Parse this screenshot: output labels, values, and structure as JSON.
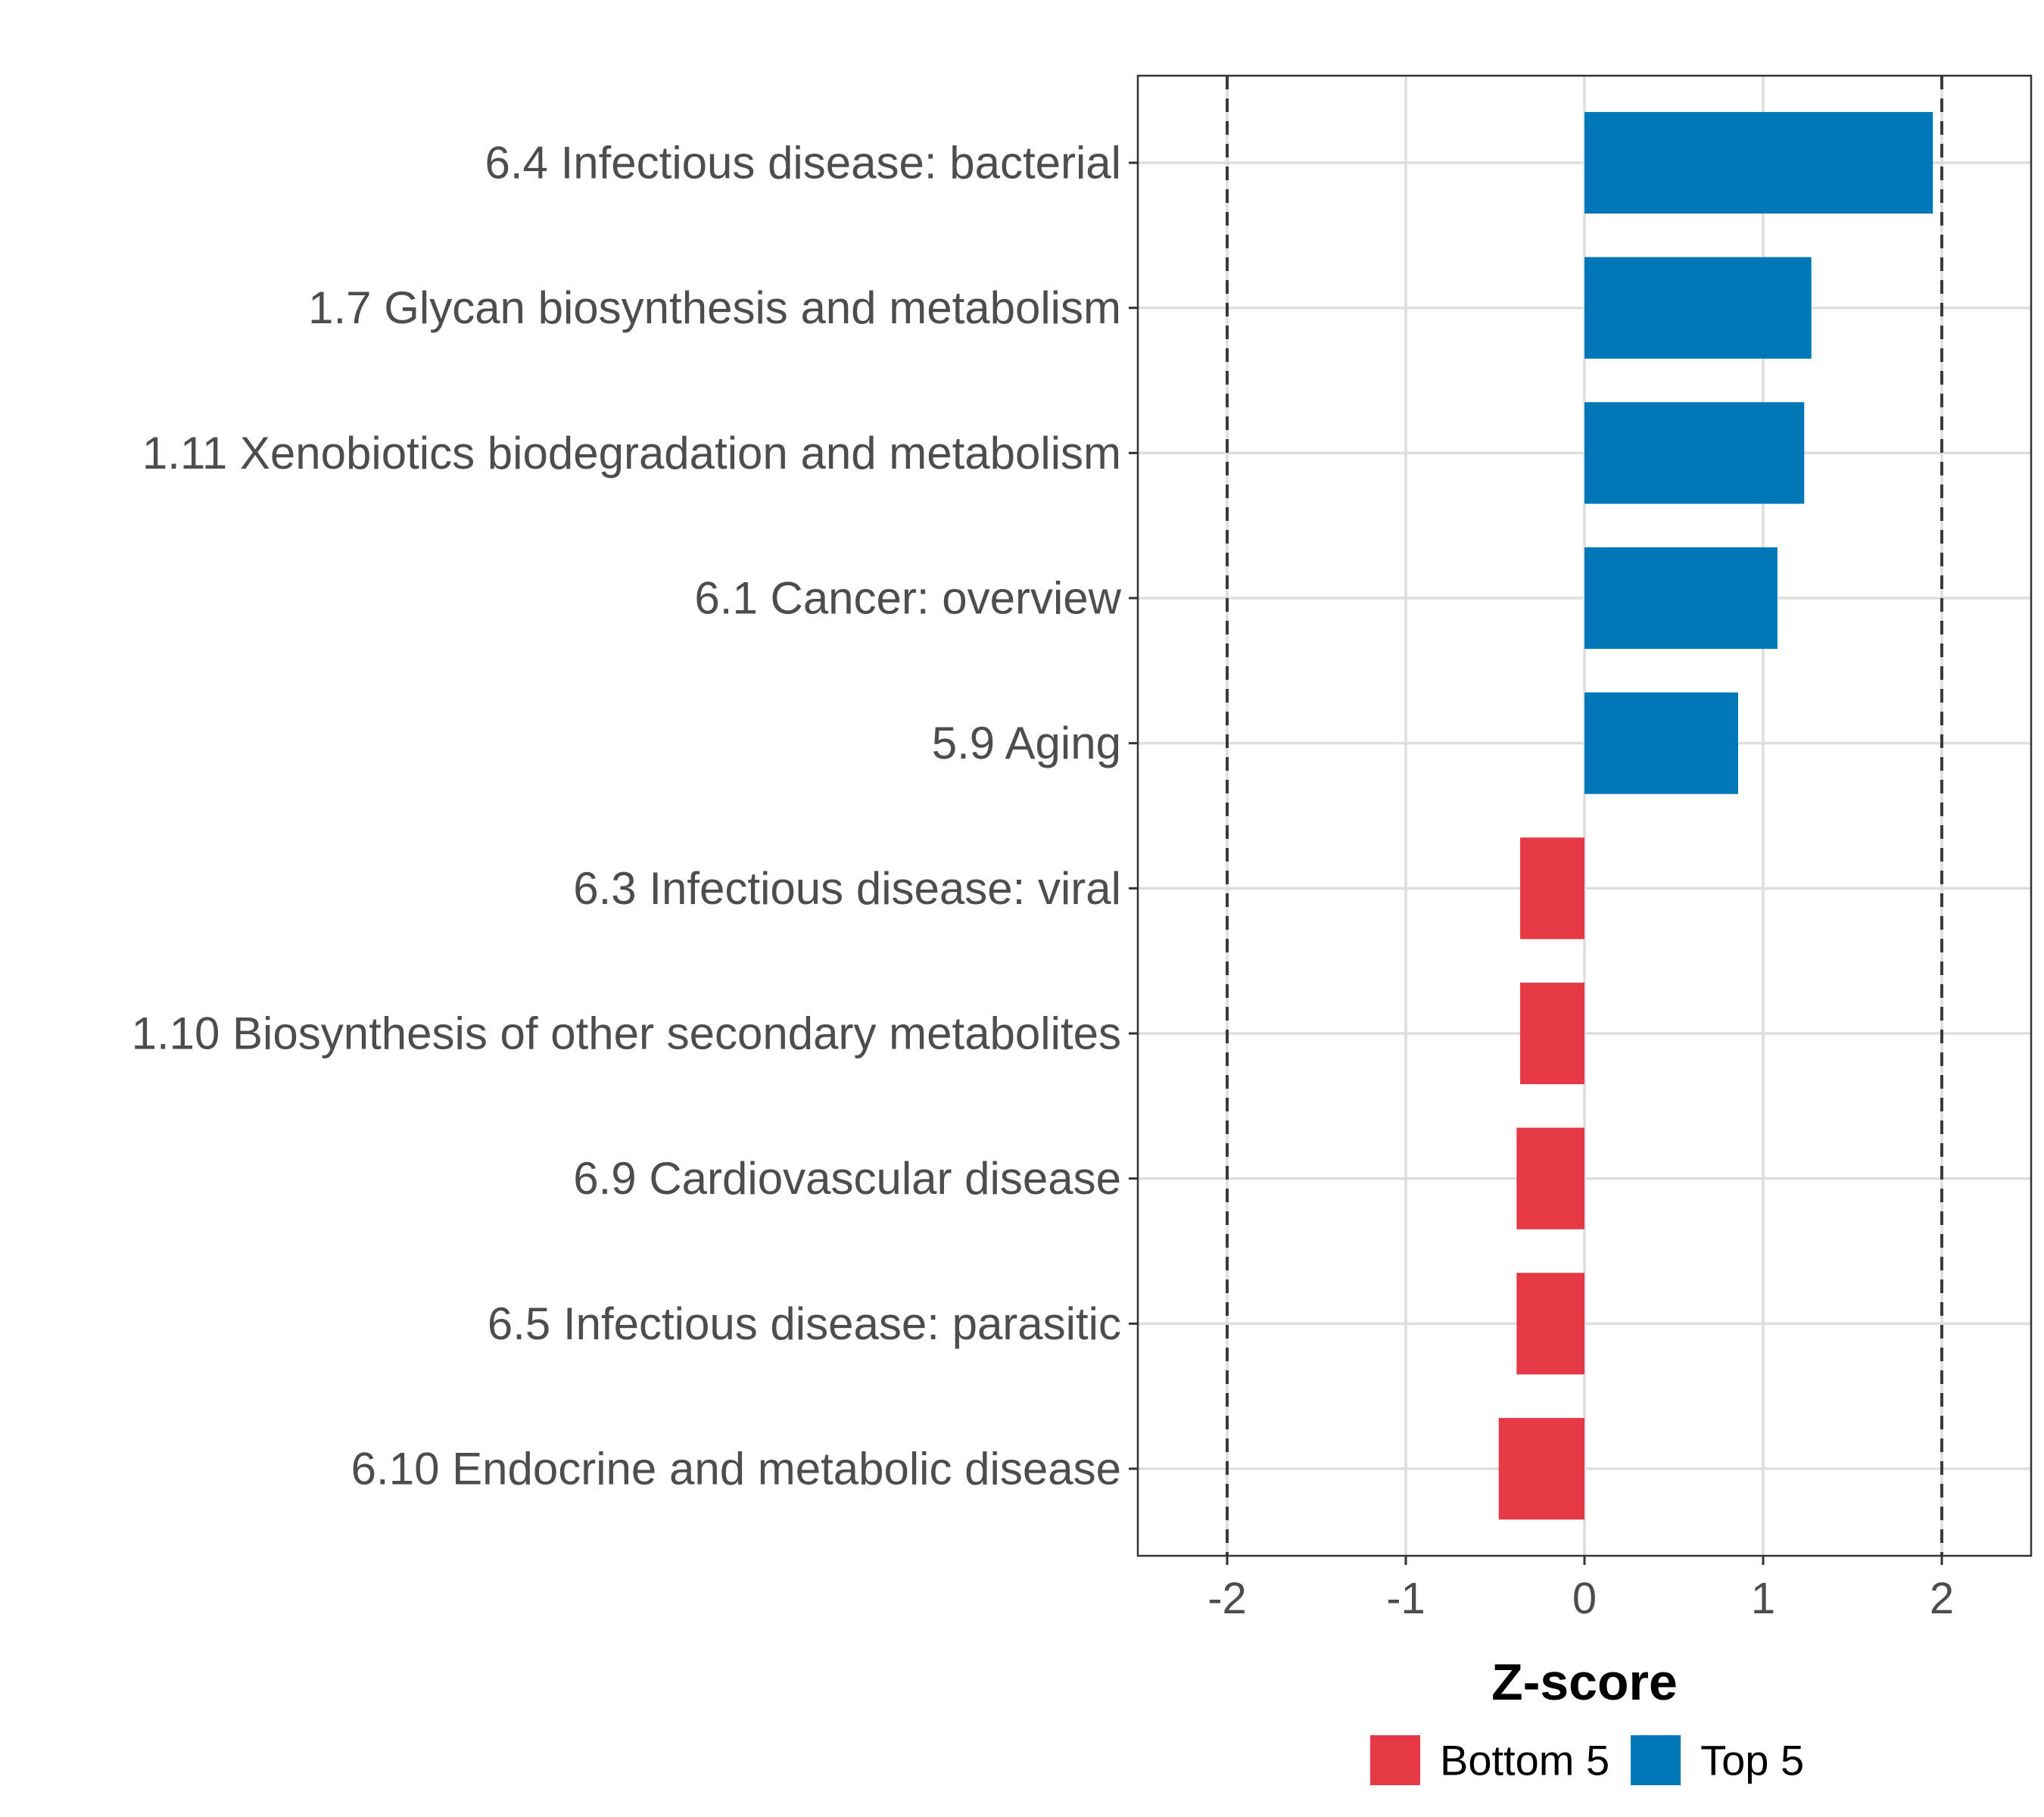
{
  "chart_data": {
    "type": "bar",
    "orientation": "horizontal",
    "title": "",
    "xlabel": "Z-score",
    "ylabel": "",
    "xlim": [
      -2.5,
      2.5
    ],
    "xticks": [
      -2,
      -1,
      0,
      1,
      2
    ],
    "xtick_labels": [
      "-2",
      "-1",
      "0",
      "1",
      "2"
    ],
    "reference_lines": [
      -2,
      2
    ],
    "grid": true,
    "legend_position": "bottom",
    "legend": [
      {
        "name": "Bottom 5",
        "color": "#E63946"
      },
      {
        "name": "Top 5",
        "color": "#0077B6"
      }
    ],
    "categories": [
      "6.4 Infectious disease: bacterial",
      "1.7 Glycan biosynthesis and metabolism",
      "1.11 Xenobiotics biodegradation and metabolism",
      "6.1 Cancer: overview",
      "5.9 Aging",
      "6.3 Infectious disease: viral",
      "1.10 Biosynthesis of other secondary metabolites",
      "6.9 Cardiovascular disease",
      "6.5 Infectious disease: parasitic",
      "6.10 Endocrine and metabolic disease"
    ],
    "values": [
      1.95,
      1.27,
      1.23,
      1.08,
      0.86,
      -0.36,
      -0.36,
      -0.38,
      -0.38,
      -0.48
    ],
    "groups": [
      "Top 5",
      "Top 5",
      "Top 5",
      "Top 5",
      "Top 5",
      "Bottom 5",
      "Bottom 5",
      "Bottom 5",
      "Bottom 5",
      "Bottom 5"
    ]
  }
}
